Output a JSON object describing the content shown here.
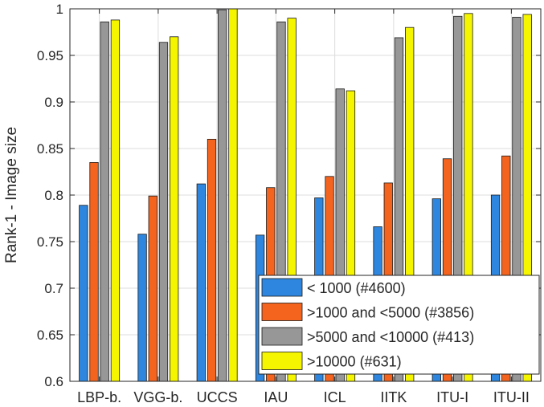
{
  "chart_data": {
    "type": "bar",
    "ylabel": "Rank-1 - Image size",
    "xlabel": "",
    "ylim": [
      0.6,
      1.0
    ],
    "yticks": [
      0.6,
      0.65,
      0.7,
      0.75,
      0.8,
      0.85,
      0.9,
      0.95,
      1
    ],
    "ytick_labels": [
      "0.6",
      "0.65",
      "0.7",
      "0.75",
      "0.8",
      "0.85",
      "0.9",
      "0.95",
      "1"
    ],
    "grid": true,
    "legend_position": "bottom-right",
    "categories": [
      "LBP-b.",
      "VGG-b.",
      "UCCS",
      "IAU",
      "ICL",
      "IITK",
      "ITU-I",
      "ITU-II"
    ],
    "series": [
      {
        "name": "< 1000 (#4600)",
        "color": "#2e86de",
        "values": [
          0.789,
          0.758,
          0.812,
          0.757,
          0.797,
          0.766,
          0.796,
          0.8
        ]
      },
      {
        "name": ">1000 and <5000 (#3856)",
        "color": "#f4641f",
        "values": [
          0.835,
          0.799,
          0.86,
          0.808,
          0.82,
          0.813,
          0.839,
          0.842
        ]
      },
      {
        "name": ">5000 and <10000 (#413)",
        "color": "#979797",
        "values": [
          0.986,
          0.964,
          0.999,
          0.986,
          0.914,
          0.969,
          0.992,
          0.991
        ]
      },
      {
        "name": ">10000 (#631)",
        "color": "#f5f500",
        "values": [
          0.988,
          0.97,
          1.0,
          0.99,
          0.912,
          0.98,
          0.995,
          0.994
        ]
      }
    ]
  }
}
